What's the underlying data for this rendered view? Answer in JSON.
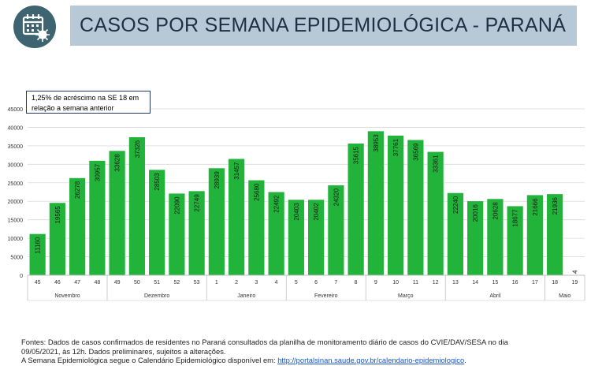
{
  "header": {
    "title": "CASOS POR SEMANA EPIDEMIOLÓGICA - PARANÁ"
  },
  "annotation": {
    "line1": "1,25% de acréscimo na SE 18 em",
    "line2": "relação a semana anterior"
  },
  "footer": {
    "line1": "Fontes: Dados de casos confirmados de residentes no Paraná consultados da planilha de monitoramento diário de casos do CVIE/DAV/SESA no dia",
    "line2": "09/05/2021, às 12h. Dados preliminares, sujeitos a alterações.",
    "line3": "A Semana Epidemiológica segue o Calendário Epidemiológico disponível em: ",
    "link": "http://portalsinan.saude.gov.br/calendario-epidemiologico",
    "line3_end": "."
  },
  "colors": {
    "bar": "#22b33a",
    "band": "#b7c9d6",
    "logo": "#3d6470",
    "box_border": "#1f3864"
  },
  "chart_data": {
    "type": "bar",
    "categories": [
      "45",
      "46",
      "47",
      "48",
      "49",
      "50",
      "51",
      "52",
      "53",
      "1",
      "2",
      "3",
      "4",
      "5",
      "6",
      "7",
      "8",
      "9",
      "10",
      "11",
      "12",
      "13",
      "14",
      "15",
      "16",
      "17",
      "18",
      "19"
    ],
    "values": [
      11160,
      19565,
      26278,
      30957,
      33628,
      37326,
      28503,
      22090,
      22749,
      28939,
      31457,
      25680,
      22492,
      20403,
      20402,
      24320,
      35615,
      38953,
      37761,
      36569,
      33361,
      22240,
      20016,
      20628,
      18677,
      21666,
      21936,
      4
    ],
    "groups": [
      {
        "label": "Novembro",
        "start": 0,
        "end": 3
      },
      {
        "label": "Dezembro",
        "start": 4,
        "end": 8
      },
      {
        "label": "Janeiro",
        "start": 9,
        "end": 12
      },
      {
        "label": "Fevereiro",
        "start": 13,
        "end": 16
      },
      {
        "label": "Março",
        "start": 17,
        "end": 20
      },
      {
        "label": "Abril",
        "start": 21,
        "end": 25
      },
      {
        "label": "Maio",
        "start": 26,
        "end": 27
      }
    ],
    "yticks": [
      0,
      5000,
      10000,
      15000,
      20000,
      25000,
      30000,
      35000,
      40000,
      45000
    ],
    "ylim": [
      0,
      45000
    ],
    "grid": true,
    "title": "",
    "xlabel": "",
    "ylabel": ""
  }
}
